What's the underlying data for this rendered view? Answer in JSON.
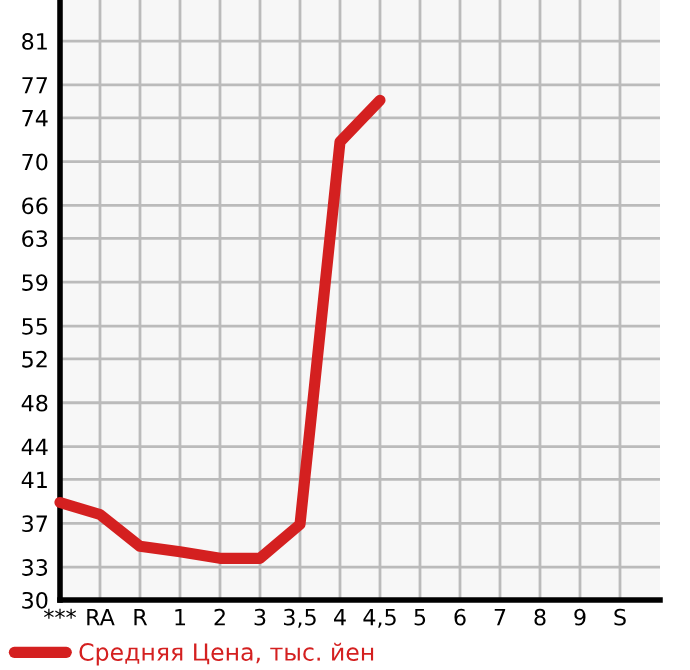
{
  "chart_data": {
    "type": "line",
    "categories": [
      "***",
      "RA",
      "R",
      "1",
      "2",
      "3",
      "3,5",
      "4",
      "4,5",
      "5",
      "6",
      "7",
      "8",
      "9",
      "S"
    ],
    "series": [
      {
        "name": "Средняя Цена, тыс. йен",
        "color": "#d42020",
        "values": [
          38.9,
          37.8,
          34.9,
          34.4,
          33.8,
          33.8,
          36.9,
          71.8,
          75.6,
          null,
          null,
          null,
          null,
          null,
          null
        ]
      }
    ],
    "ylim": [
      30,
      84.75
    ],
    "yticks": [
      30,
      33,
      37,
      41,
      44,
      48,
      52,
      55,
      59,
      63,
      66,
      70,
      74,
      77,
      81
    ],
    "grid": true,
    "legend": "bottom",
    "marker": "none",
    "line_style": "solid"
  }
}
